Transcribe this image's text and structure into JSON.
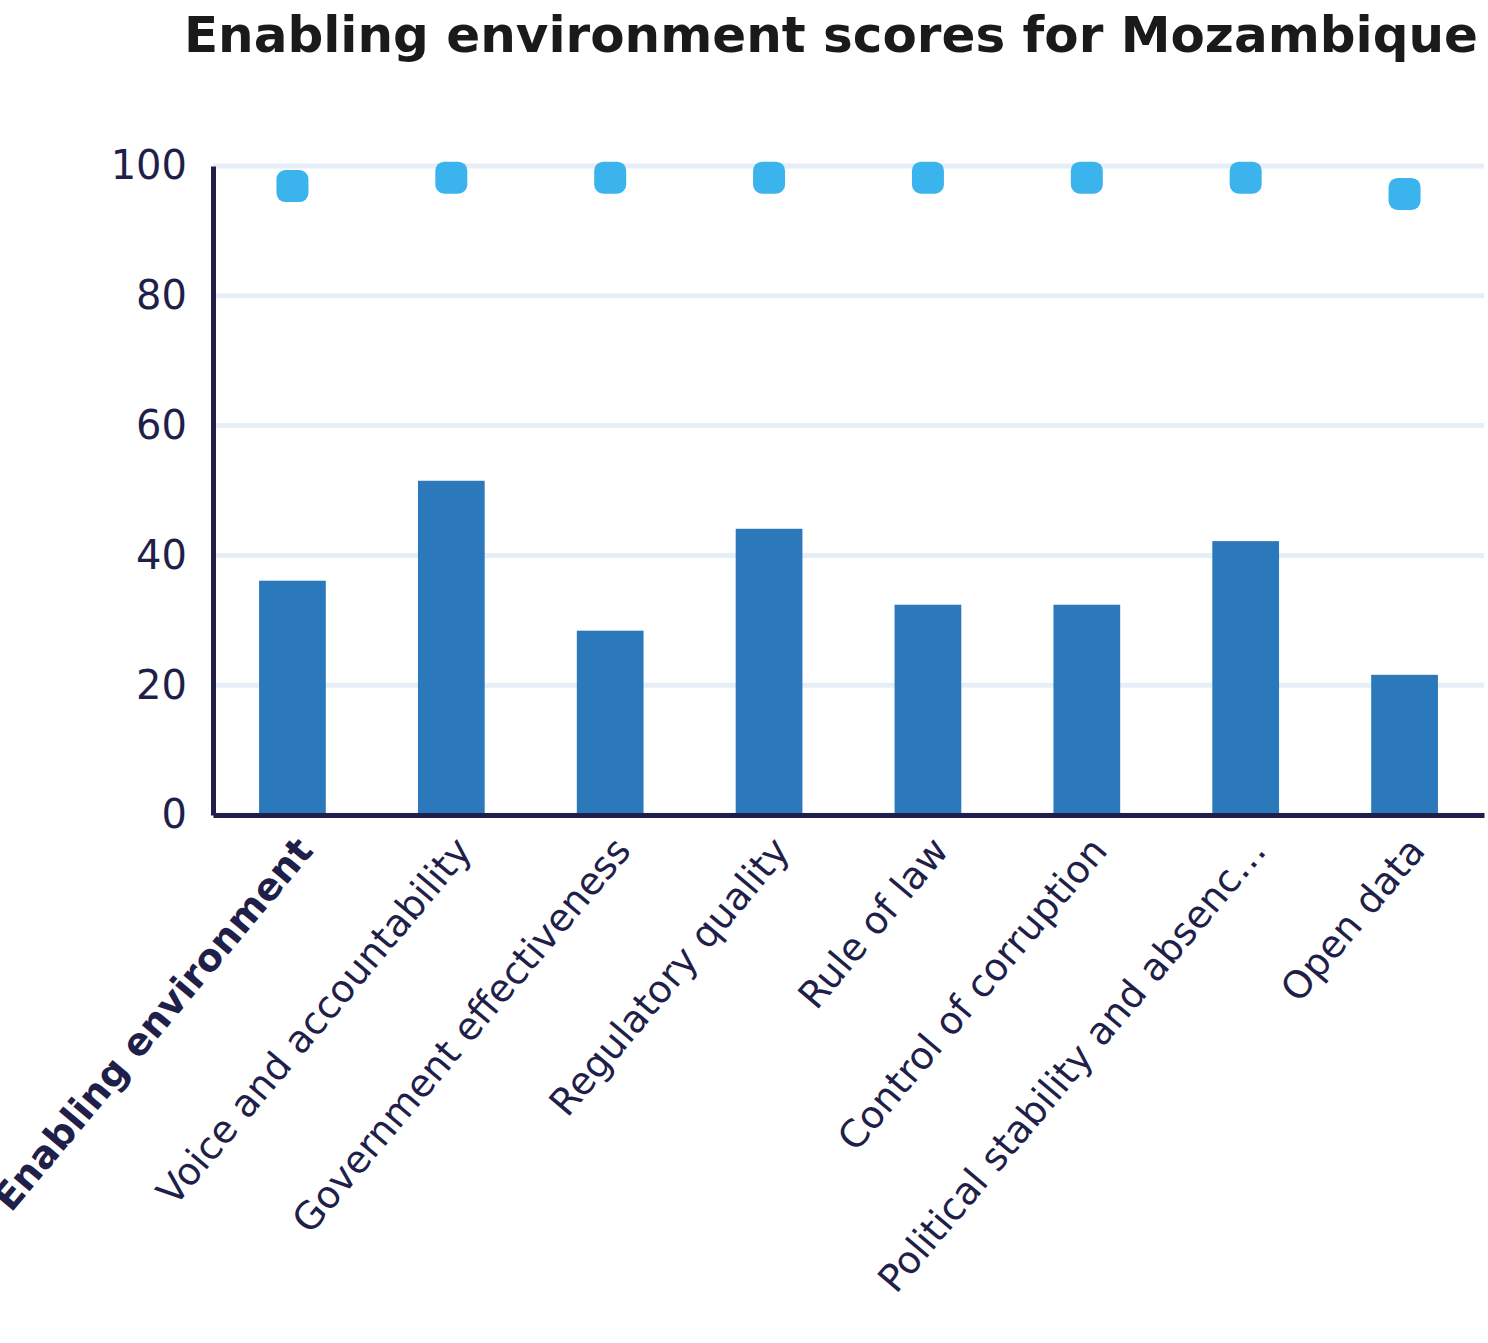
{
  "chart_data": {
    "type": "bar",
    "title": "Enabling environment scores for Mozambique",
    "categories": [
      "Enabling environment",
      "Voice and accountability",
      "Government effectiveness",
      "Regulatory quality",
      "Rule of law",
      "Control of corruption",
      "Political stability and absenc…",
      "Open data"
    ],
    "series": [
      {
        "type": "bar",
        "color": "#2b79bb",
        "values": [
          36.1,
          51.5,
          28.4,
          44.1,
          32.4,
          32.4,
          42.2,
          21.6
        ]
      },
      {
        "type": "scatter",
        "marker": "square",
        "color": "#3bb3ec",
        "values": [
          96.9,
          98.2,
          98.2,
          98.2,
          98.2,
          98.2,
          98.2,
          95.7
        ]
      }
    ],
    "ylim": [
      0,
      100
    ],
    "yticks": [
      0,
      20,
      40,
      60,
      80,
      100
    ],
    "grid": true
  }
}
